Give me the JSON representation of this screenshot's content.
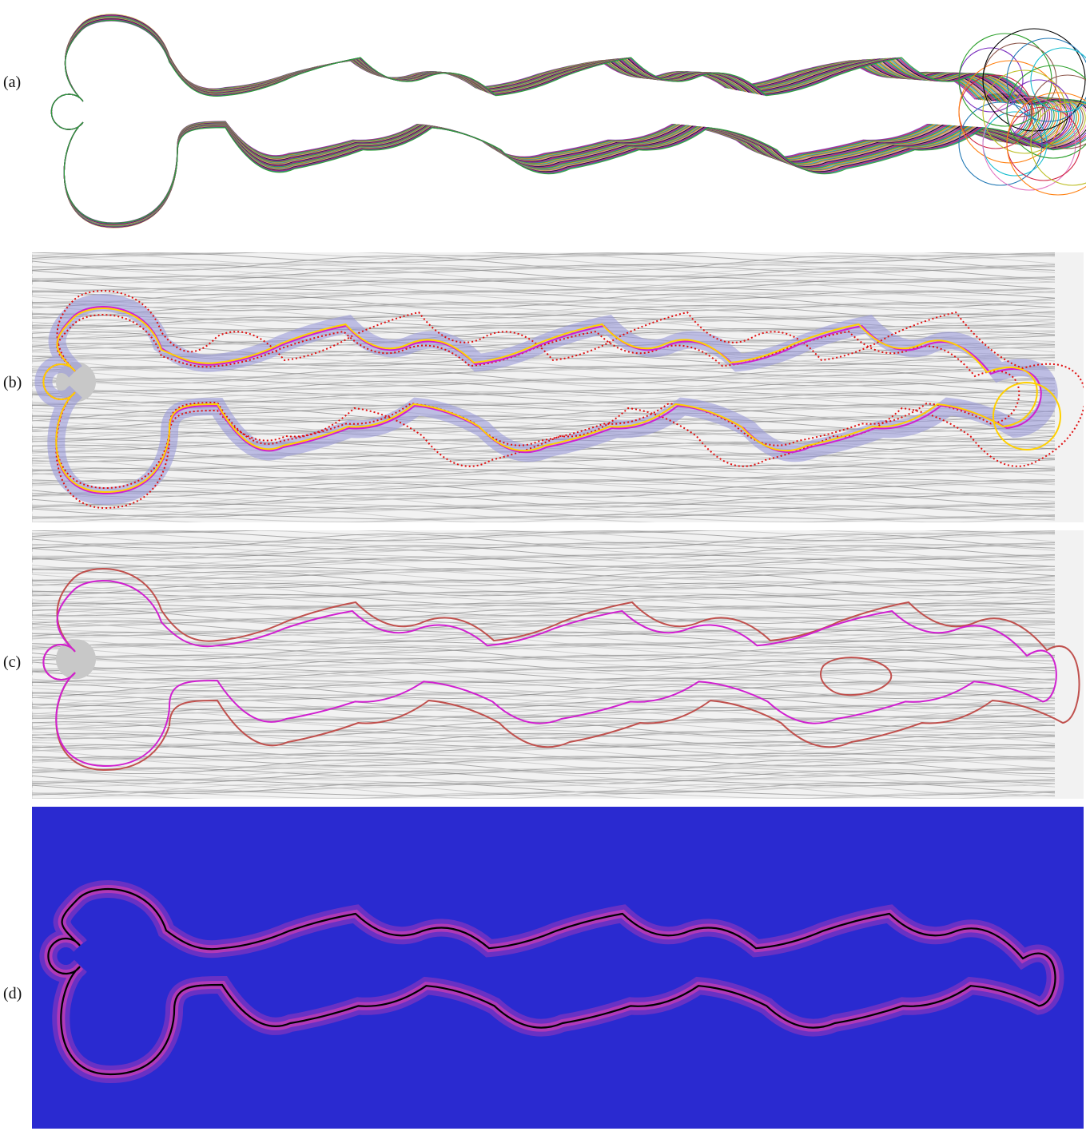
{
  "panels": [
    {
      "label": "(a)"
    },
    {
      "label": "(b)"
    },
    {
      "label": "(c)"
    },
    {
      "label": "(d)"
    }
  ],
  "colors": {
    "panel_a_curves": [
      "#7b2fbf",
      "#d02040",
      "#1f77b4",
      "#2ca02c",
      "#ff7f0e",
      "#17becf",
      "#8c564b",
      "#bcbd22",
      "#e377c2",
      "#000000"
    ],
    "panel_b_mean": "#ffd000",
    "panel_b_ref": "#d020d0",
    "panel_b_dotted": "#e01010",
    "panel_b_band": "#9a9ad8",
    "panel_c_outer": "#c0504d",
    "panel_c_inner": "#d020d0",
    "panel_d_background": "#2a2ad0",
    "panel_d_glow": "#e040b0",
    "panel_d_curve": "#000000",
    "cylinder": "#c8c8c8"
  }
}
